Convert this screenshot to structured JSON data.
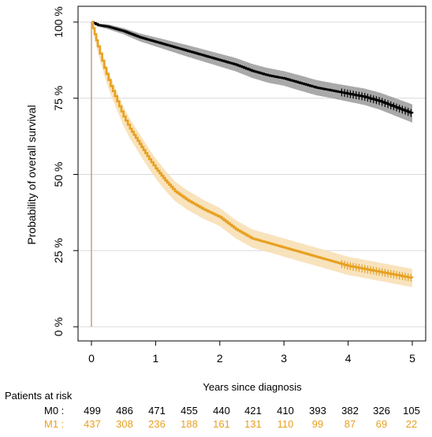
{
  "chart_data": {
    "type": "line",
    "ylabel": "Probability of overall survival",
    "xlabel": "Years since diagnosis",
    "xlim": [
      0,
      5
    ],
    "ylim": [
      0,
      100
    ],
    "x_ticks": [
      0,
      1,
      2,
      3,
      4,
      5
    ],
    "x_tick_labels": [
      "0",
      "1",
      "2",
      "3",
      "4",
      "5"
    ],
    "y_ticks": [
      0,
      25,
      50,
      75,
      100
    ],
    "y_tick_labels": [
      "0 %",
      "25 %",
      "50 %",
      "75 %",
      "100 %"
    ],
    "grid": "horizontal",
    "series": [
      {
        "name": "M0",
        "color": "#000000",
        "band_color": "#8c8c8c",
        "points": [
          [
            0,
            100
          ],
          [
            0.1,
            99
          ],
          [
            0.25,
            98.5
          ],
          [
            0.5,
            97
          ],
          [
            0.75,
            95
          ],
          [
            1,
            93.5
          ],
          [
            1.25,
            92
          ],
          [
            1.5,
            90.5
          ],
          [
            1.75,
            89
          ],
          [
            2,
            87.5
          ],
          [
            2.25,
            86
          ],
          [
            2.5,
            84
          ],
          [
            2.75,
            82.5
          ],
          [
            3,
            81.5
          ],
          [
            3.25,
            80
          ],
          [
            3.5,
            78.5
          ],
          [
            3.75,
            77.5
          ],
          [
            4,
            76.5
          ],
          [
            4.25,
            75.5
          ],
          [
            4.5,
            74
          ],
          [
            4.75,
            72
          ],
          [
            5,
            70
          ]
        ],
        "ci_half_width": [
          0,
          0.5,
          0.8,
          1,
          1.3,
          1.5,
          1.7,
          1.9,
          2,
          2.1,
          2.2,
          2.3,
          2.4,
          2.4,
          2.5,
          2.5,
          2.5,
          2.6,
          2.7,
          2.8,
          2.9,
          3
        ]
      },
      {
        "name": "M1",
        "color": "#e8a020",
        "band_color": "#f7deb2",
        "points": [
          [
            0,
            100
          ],
          [
            0.05,
            96
          ],
          [
            0.1,
            92
          ],
          [
            0.2,
            85
          ],
          [
            0.3,
            79
          ],
          [
            0.4,
            74
          ],
          [
            0.5,
            69
          ],
          [
            0.6,
            65
          ],
          [
            0.75,
            60
          ],
          [
            0.9,
            55
          ],
          [
            1,
            52
          ],
          [
            1.15,
            48
          ],
          [
            1.3,
            44.5
          ],
          [
            1.5,
            41.5
          ],
          [
            1.75,
            38.5
          ],
          [
            2,
            36
          ],
          [
            2.25,
            32
          ],
          [
            2.5,
            29
          ],
          [
            2.75,
            27.5
          ],
          [
            3,
            26
          ],
          [
            3.25,
            24.5
          ],
          [
            3.5,
            23
          ],
          [
            3.75,
            21.5
          ],
          [
            4,
            20
          ],
          [
            4.25,
            19
          ],
          [
            4.5,
            18
          ],
          [
            4.75,
            17
          ],
          [
            5,
            16
          ]
        ],
        "ci_half_width": [
          0,
          1.5,
          2,
          2.5,
          2.8,
          3,
          3.1,
          3.2,
          3.3,
          3.3,
          3.3,
          3.3,
          3.2,
          3.2,
          3.1,
          3,
          3,
          3,
          3,
          3,
          3,
          3,
          3,
          3,
          3,
          3,
          3,
          3
        ]
      }
    ],
    "risk_table": {
      "title": "Patients at risk",
      "rows": [
        {
          "label": "M0 :",
          "color": "#000000",
          "values": [
            "499",
            "486",
            "471",
            "455",
            "440",
            "421",
            "410",
            "393",
            "382",
            "326",
            "105"
          ]
        },
        {
          "label": "M1 :",
          "color": "#e8a020",
          "values": [
            "437",
            "308",
            "236",
            "188",
            "161",
            "131",
            "110",
            "99",
            "87",
            "69",
            "22"
          ]
        }
      ]
    }
  }
}
